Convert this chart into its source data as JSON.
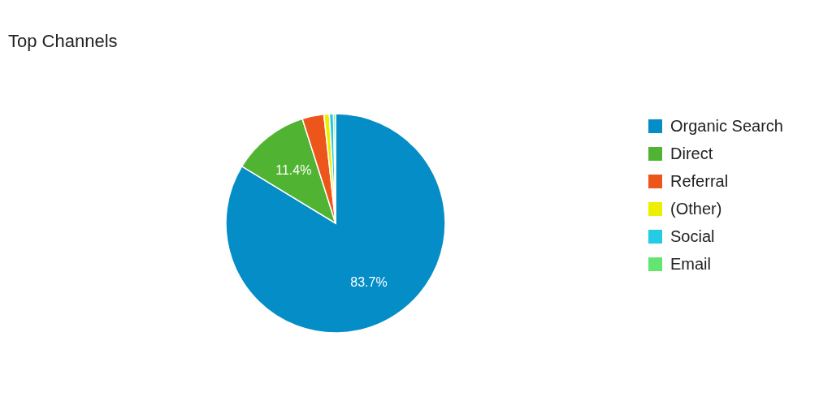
{
  "chart_data": {
    "type": "pie",
    "title": "Top Channels",
    "categories": [
      "Organic Search",
      "Direct",
      "Referral",
      "(Other)",
      "Social",
      "Email"
    ],
    "values": [
      83.7,
      11.4,
      3.2,
      0.8,
      0.6,
      0.3
    ],
    "colors": [
      "#058dc7",
      "#50b432",
      "#ed561b",
      "#edef00",
      "#24cbe5",
      "#64e572"
    ],
    "value_labels": [
      "83.7%",
      "11.4%",
      null,
      null,
      null,
      null
    ],
    "legend": "right"
  }
}
